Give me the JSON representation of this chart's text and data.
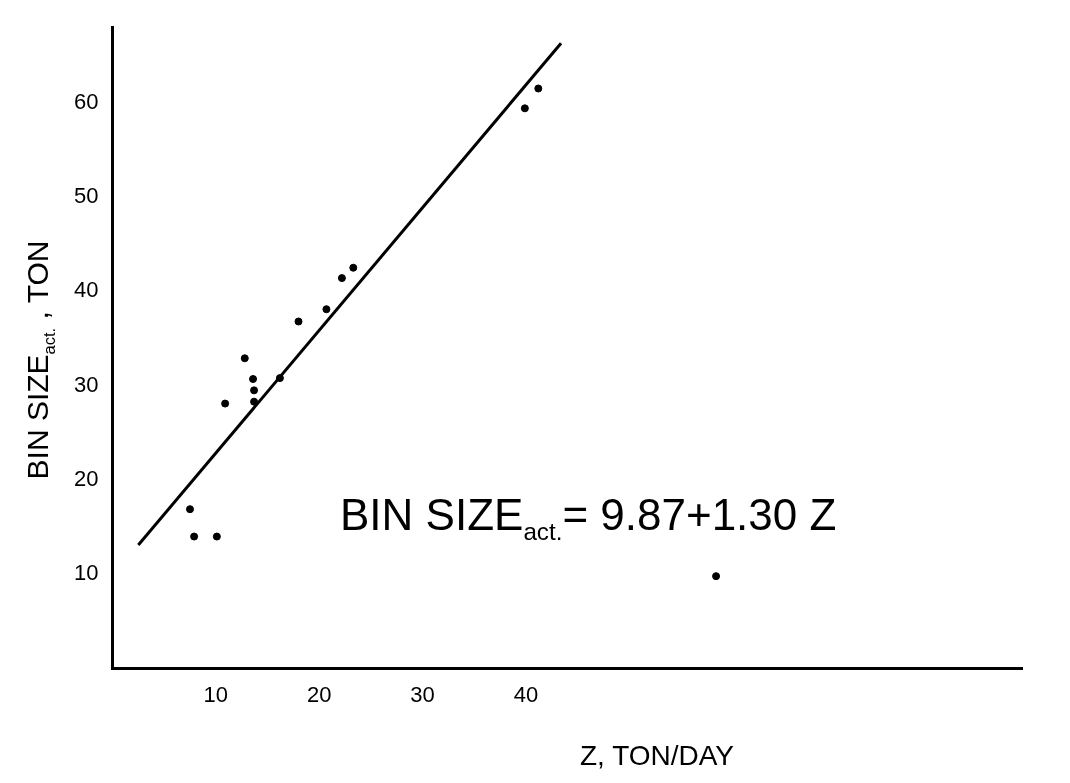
{
  "chart_data": {
    "type": "scatter",
    "xlabel": "Z, TON/DAY",
    "ylabel": "BIN  SIZE$_{act.}$ , TON",
    "annotations": [
      "BIN  SIZE$_{act.}$= 9.87+1.30 Z"
    ],
    "xlim": [
      0,
      88
    ],
    "xticks": [
      10,
      20,
      30,
      40
    ],
    "ylim": [
      0,
      68
    ],
    "yticks": [
      10,
      20,
      30,
      40,
      50,
      60
    ],
    "grid": false,
    "legend": false,
    "series": [
      {
        "color": "#000000",
        "marker": "circle",
        "x": [
          7.5,
          7.9,
          10.1,
          10.9,
          12.8,
          13.6,
          13.7,
          13.7,
          16.2,
          18.0,
          20.7,
          22.2,
          23.3,
          39.9,
          41.2,
          58.4
        ],
        "values": [
          16.9,
          14.0,
          14.0,
          28.1,
          32.9,
          30.7,
          29.5,
          28.3,
          30.8,
          36.8,
          38.1,
          41.4,
          42.5,
          59.4,
          61.5,
          9.8
        ]
      },
      {
        "type": "line",
        "color": "#000000",
        "x": [
          2.5,
          43.4
        ],
        "values": [
          13.1,
          66.3
        ]
      }
    ]
  }
}
